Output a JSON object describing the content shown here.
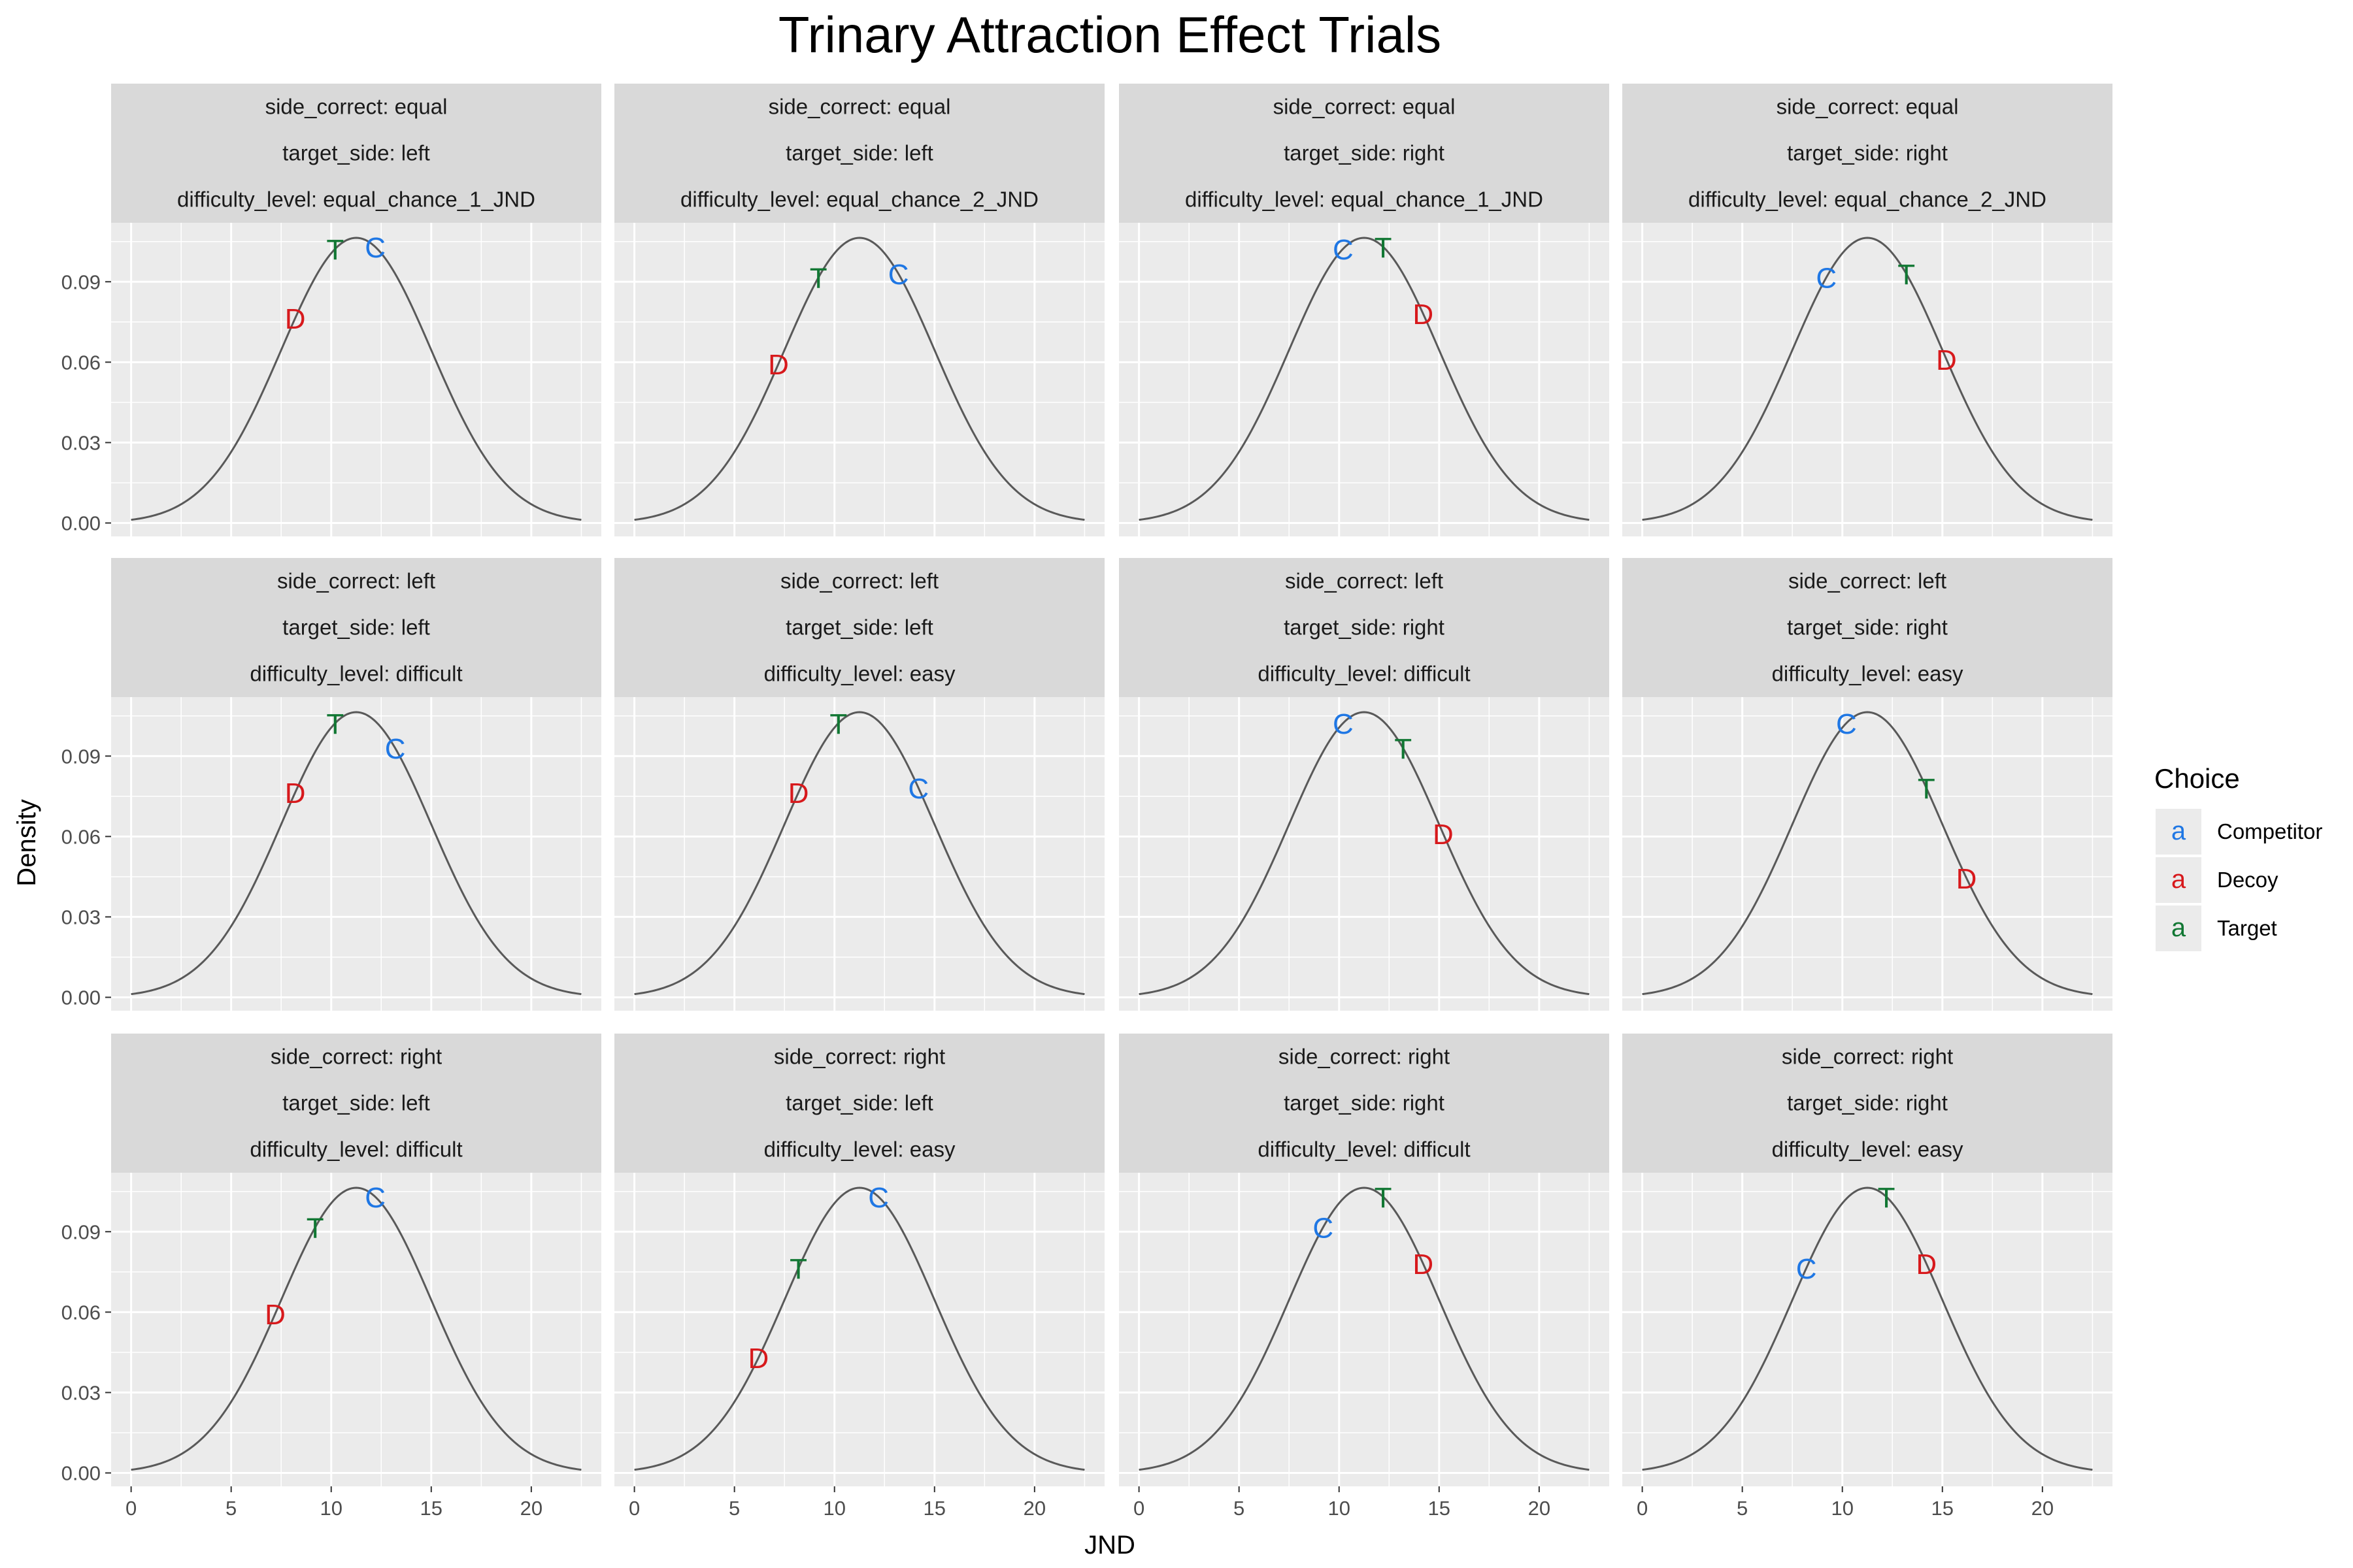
{
  "chart_data": {
    "type": "line",
    "title": "Trinary Attraction Effect Trials",
    "xlabel": "JND",
    "ylabel": "Density",
    "xlim": [
      -1,
      23.5
    ],
    "ylim": [
      -0.005,
      0.112
    ],
    "x_ticks": [
      0,
      5,
      10,
      15,
      20
    ],
    "y_ticks": [
      0.0,
      0.03,
      0.06,
      0.09
    ],
    "y_tick_labels": [
      "0.00",
      "0.03",
      "0.06",
      "0.09"
    ],
    "curve": {
      "mean": 11.25,
      "sd": 3.75,
      "x_min": 0,
      "x_max": 22.5,
      "color": "#595959"
    },
    "grid": true,
    "legend": {
      "title": "Choice",
      "position": "right",
      "key_glyph": "a",
      "entries": [
        {
          "label": "Competitor",
          "letter": "C",
          "color": "#1f77e4"
        },
        {
          "label": "Decoy",
          "letter": "D",
          "color": "#d7191c"
        },
        {
          "label": "Target",
          "letter": "T",
          "color": "#117733"
        }
      ]
    },
    "panels": [
      {
        "strips": [
          "side_correct: equal",
          "target_side: left",
          "difficulty_level: equal_chance_1_JND"
        ],
        "points": [
          {
            "letter": "T",
            "choice": "Target",
            "x": 10.2
          },
          {
            "letter": "C",
            "choice": "Competitor",
            "x": 12.2
          },
          {
            "letter": "D",
            "choice": "Decoy",
            "x": 8.2
          }
        ]
      },
      {
        "strips": [
          "side_correct: equal",
          "target_side: left",
          "difficulty_level: equal_chance_2_JND"
        ],
        "points": [
          {
            "letter": "T",
            "choice": "Target",
            "x": 9.2
          },
          {
            "letter": "C",
            "choice": "Competitor",
            "x": 13.2
          },
          {
            "letter": "D",
            "choice": "Decoy",
            "x": 7.2
          }
        ]
      },
      {
        "strips": [
          "side_correct: equal",
          "target_side: right",
          "difficulty_level: equal_chance_1_JND"
        ],
        "points": [
          {
            "letter": "C",
            "choice": "Competitor",
            "x": 10.2
          },
          {
            "letter": "T",
            "choice": "Target",
            "x": 12.2
          },
          {
            "letter": "D",
            "choice": "Decoy",
            "x": 14.2
          }
        ]
      },
      {
        "strips": [
          "side_correct: equal",
          "target_side: right",
          "difficulty_level: equal_chance_2_JND"
        ],
        "points": [
          {
            "letter": "C",
            "choice": "Competitor",
            "x": 9.2
          },
          {
            "letter": "T",
            "choice": "Target",
            "x": 13.2
          },
          {
            "letter": "D",
            "choice": "Decoy",
            "x": 15.2
          }
        ]
      },
      {
        "strips": [
          "side_correct: left",
          "target_side: left",
          "difficulty_level: difficult"
        ],
        "points": [
          {
            "letter": "T",
            "choice": "Target",
            "x": 10.2
          },
          {
            "letter": "C",
            "choice": "Competitor",
            "x": 13.2
          },
          {
            "letter": "D",
            "choice": "Decoy",
            "x": 8.2
          }
        ]
      },
      {
        "strips": [
          "side_correct: left",
          "target_side: left",
          "difficulty_level: easy"
        ],
        "points": [
          {
            "letter": "T",
            "choice": "Target",
            "x": 10.2
          },
          {
            "letter": "C",
            "choice": "Competitor",
            "x": 14.2
          },
          {
            "letter": "D",
            "choice": "Decoy",
            "x": 8.2
          }
        ]
      },
      {
        "strips": [
          "side_correct: left",
          "target_side: right",
          "difficulty_level: difficult"
        ],
        "points": [
          {
            "letter": "C",
            "choice": "Competitor",
            "x": 10.2
          },
          {
            "letter": "T",
            "choice": "Target",
            "x": 13.2
          },
          {
            "letter": "D",
            "choice": "Decoy",
            "x": 15.2
          }
        ]
      },
      {
        "strips": [
          "side_correct: left",
          "target_side: right",
          "difficulty_level: easy"
        ],
        "points": [
          {
            "letter": "C",
            "choice": "Competitor",
            "x": 10.2
          },
          {
            "letter": "T",
            "choice": "Target",
            "x": 14.2
          },
          {
            "letter": "D",
            "choice": "Decoy",
            "x": 16.2
          }
        ]
      },
      {
        "strips": [
          "side_correct: right",
          "target_side: left",
          "difficulty_level: difficult"
        ],
        "points": [
          {
            "letter": "T",
            "choice": "Target",
            "x": 9.2
          },
          {
            "letter": "C",
            "choice": "Competitor",
            "x": 12.2
          },
          {
            "letter": "D",
            "choice": "Decoy",
            "x": 7.2
          }
        ]
      },
      {
        "strips": [
          "side_correct: right",
          "target_side: left",
          "difficulty_level: easy"
        ],
        "points": [
          {
            "letter": "T",
            "choice": "Target",
            "x": 8.2
          },
          {
            "letter": "C",
            "choice": "Competitor",
            "x": 12.2
          },
          {
            "letter": "D",
            "choice": "Decoy",
            "x": 6.2
          }
        ]
      },
      {
        "strips": [
          "side_correct: right",
          "target_side: right",
          "difficulty_level: difficult"
        ],
        "points": [
          {
            "letter": "C",
            "choice": "Competitor",
            "x": 9.2
          },
          {
            "letter": "T",
            "choice": "Target",
            "x": 12.2
          },
          {
            "letter": "D",
            "choice": "Decoy",
            "x": 14.2
          }
        ]
      },
      {
        "strips": [
          "side_correct: right",
          "target_side: right",
          "difficulty_level: easy"
        ],
        "points": [
          {
            "letter": "C",
            "choice": "Competitor",
            "x": 8.2
          },
          {
            "letter": "T",
            "choice": "Target",
            "x": 12.2
          },
          {
            "letter": "D",
            "choice": "Decoy",
            "x": 14.2
          }
        ]
      }
    ]
  }
}
